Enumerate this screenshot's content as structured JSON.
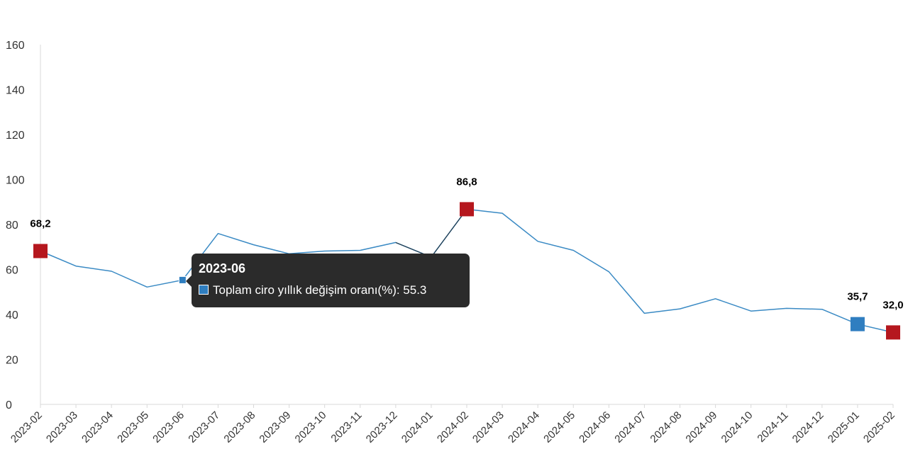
{
  "colors": {
    "line": "#3a8ac4",
    "highlight_red": "#b5171e",
    "highlight_blue": "#2f7ec0",
    "axis": "#d9d9d9",
    "tooltip_bg": "#2b2b2b"
  },
  "chart_data": {
    "type": "line",
    "title": "",
    "xlabel": "",
    "ylabel": "",
    "ylim": [
      0,
      160
    ],
    "yticks": [
      0,
      20,
      40,
      60,
      80,
      100,
      120,
      140,
      160
    ],
    "grid": false,
    "categories": [
      "2023-02",
      "2023-03",
      "2023-04",
      "2023-05",
      "2023-06",
      "2023-07",
      "2023-08",
      "2023-09",
      "2023-10",
      "2023-11",
      "2023-12",
      "2024-01",
      "2024-02",
      "2024-03",
      "2024-04",
      "2024-05",
      "2024-06",
      "2024-07",
      "2024-08",
      "2024-09",
      "2024-10",
      "2024-11",
      "2024-12",
      "2025-01",
      "2025-02"
    ],
    "series": [
      {
        "name": "Toplam ciro yıllık değişim oranı(%)",
        "values": [
          68.2,
          61.5,
          59.2,
          52.2,
          55.3,
          76.0,
          71.0,
          67.0,
          68.2,
          68.5,
          72.0,
          65.5,
          86.8,
          85.0,
          72.5,
          68.5,
          59.0,
          40.5,
          42.5,
          47.0,
          41.5,
          42.7,
          42.3,
          35.7,
          32.0
        ]
      }
    ],
    "highlights": [
      {
        "category": "2023-02",
        "value": 68.2,
        "label": "68,2",
        "color": "red"
      },
      {
        "category": "2024-02",
        "value": 86.8,
        "label": "86,8",
        "color": "red"
      },
      {
        "category": "2025-01",
        "value": 35.7,
        "label": "35,7",
        "color": "blue"
      },
      {
        "category": "2025-02",
        "value": 32.0,
        "label": "32,0",
        "color": "red"
      }
    ],
    "tooltip": {
      "category": "2023-06",
      "title": "2023-06",
      "text": "Toplam ciro yıllık değişim oranı(%): 55.3"
    }
  }
}
